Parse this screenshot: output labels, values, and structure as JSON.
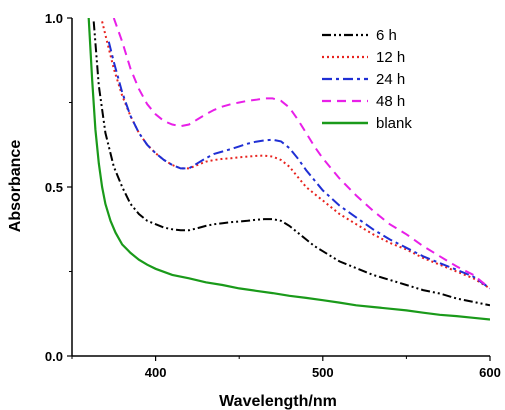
{
  "chart_data": {
    "type": "line",
    "title": "",
    "xlabel": "Wavelength/nm",
    "ylabel": "Absorbance",
    "xlim": [
      350,
      600
    ],
    "ylim": [
      0.0,
      1.0
    ],
    "x_ticks": [
      400,
      500,
      600
    ],
    "y_ticks": [
      0.0,
      0.5,
      1.0
    ],
    "y_tick_labels": [
      "0.0",
      "0.5",
      "1.0"
    ],
    "grid": false,
    "legend_position": "top-right",
    "series": [
      {
        "name": "6 h",
        "color": "#000000",
        "dash": "dash-dot-dot",
        "x": [
          363,
          366,
          370,
          375,
          380,
          385,
          390,
          395,
          400,
          405,
          410,
          415,
          420,
          425,
          430,
          435,
          440,
          445,
          450,
          455,
          460,
          465,
          470,
          475,
          480,
          485,
          490,
          495,
          500,
          510,
          520,
          530,
          540,
          550,
          560,
          570,
          580,
          590,
          600
        ],
        "y": [
          0.99,
          0.8,
          0.66,
          0.56,
          0.5,
          0.45,
          0.42,
          0.4,
          0.39,
          0.38,
          0.375,
          0.372,
          0.372,
          0.378,
          0.385,
          0.39,
          0.393,
          0.396,
          0.398,
          0.4,
          0.403,
          0.405,
          0.405,
          0.4,
          0.385,
          0.365,
          0.345,
          0.325,
          0.31,
          0.28,
          0.26,
          0.24,
          0.225,
          0.21,
          0.195,
          0.185,
          0.17,
          0.16,
          0.15
        ]
      },
      {
        "name": "12 h",
        "color": "#e8231f",
        "dash": "dot",
        "x": [
          368,
          370,
          375,
          380,
          385,
          390,
          395,
          400,
          405,
          410,
          415,
          420,
          425,
          430,
          435,
          440,
          445,
          450,
          455,
          460,
          465,
          470,
          475,
          480,
          485,
          490,
          495,
          500,
          510,
          520,
          530,
          540,
          550,
          560,
          570,
          580,
          590,
          600
        ],
        "y": [
          0.99,
          0.95,
          0.85,
          0.77,
          0.71,
          0.66,
          0.625,
          0.6,
          0.58,
          0.565,
          0.555,
          0.555,
          0.565,
          0.575,
          0.58,
          0.583,
          0.585,
          0.588,
          0.59,
          0.592,
          0.593,
          0.59,
          0.58,
          0.56,
          0.53,
          0.5,
          0.48,
          0.46,
          0.42,
          0.39,
          0.36,
          0.335,
          0.315,
          0.29,
          0.27,
          0.25,
          0.23,
          0.2
        ]
      },
      {
        "name": "24 h",
        "color": "#1f2fd4",
        "dash": "dash-dot",
        "x": [
          372,
          375,
          380,
          385,
          390,
          395,
          400,
          405,
          410,
          415,
          420,
          425,
          430,
          435,
          440,
          445,
          450,
          455,
          460,
          465,
          470,
          475,
          480,
          485,
          490,
          495,
          500,
          510,
          520,
          530,
          540,
          550,
          560,
          570,
          580,
          590,
          600
        ],
        "y": [
          0.93,
          0.87,
          0.78,
          0.71,
          0.66,
          0.625,
          0.6,
          0.58,
          0.565,
          0.555,
          0.555,
          0.57,
          0.585,
          0.598,
          0.605,
          0.612,
          0.62,
          0.628,
          0.634,
          0.638,
          0.64,
          0.635,
          0.615,
          0.585,
          0.55,
          0.52,
          0.49,
          0.445,
          0.41,
          0.375,
          0.345,
          0.32,
          0.295,
          0.275,
          0.255,
          0.235,
          0.2
        ]
      },
      {
        "name": "48 h",
        "color": "#e81fe8",
        "dash": "dash",
        "x": [
          375,
          380,
          385,
          390,
          395,
          400,
          405,
          410,
          415,
          420,
          425,
          430,
          435,
          440,
          445,
          450,
          455,
          460,
          465,
          470,
          475,
          480,
          485,
          490,
          495,
          500,
          510,
          520,
          530,
          540,
          550,
          560,
          570,
          580,
          590,
          600
        ],
        "y": [
          1.0,
          0.93,
          0.85,
          0.79,
          0.745,
          0.715,
          0.695,
          0.685,
          0.68,
          0.685,
          0.7,
          0.715,
          0.728,
          0.738,
          0.745,
          0.75,
          0.755,
          0.758,
          0.762,
          0.762,
          0.755,
          0.735,
          0.7,
          0.66,
          0.62,
          0.585,
          0.525,
          0.475,
          0.43,
          0.39,
          0.36,
          0.325,
          0.295,
          0.265,
          0.24,
          0.2
        ]
      },
      {
        "name": "blank",
        "color": "#1a9a1a",
        "dash": "solid",
        "x": [
          360,
          362,
          364,
          366,
          368,
          370,
          373,
          376,
          380,
          385,
          390,
          395,
          400,
          410,
          420,
          430,
          440,
          450,
          460,
          470,
          480,
          490,
          500,
          510,
          520,
          530,
          540,
          550,
          560,
          570,
          580,
          590,
          600
        ],
        "y": [
          1.0,
          0.82,
          0.67,
          0.57,
          0.5,
          0.45,
          0.4,
          0.365,
          0.33,
          0.305,
          0.285,
          0.27,
          0.258,
          0.24,
          0.23,
          0.218,
          0.21,
          0.2,
          0.193,
          0.186,
          0.178,
          0.172,
          0.165,
          0.158,
          0.15,
          0.145,
          0.14,
          0.135,
          0.128,
          0.122,
          0.118,
          0.113,
          0.108
        ]
      }
    ]
  }
}
